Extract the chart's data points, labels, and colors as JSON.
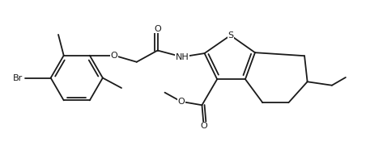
{
  "figsize": [
    4.57,
    2.02
  ],
  "dpi": 100,
  "bg": "#ffffff",
  "lc": "#1a1a1a",
  "lw": 1.3,
  "fs": 8.0,
  "xlim": [
    0,
    10.2
  ],
  "ylim": [
    0,
    4.5
  ]
}
